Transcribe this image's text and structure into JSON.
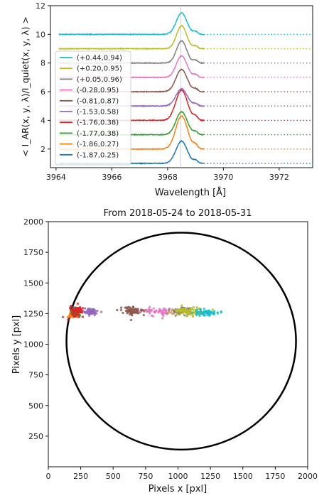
{
  "chart_data": [
    {
      "type": "line",
      "title": "",
      "xlabel": "Wavelength [Å]",
      "ylabel": "< I_AR(x, y, λ)/I_quiet(x, y, λ) >",
      "xlim": [
        3963.8,
        3973.2
      ],
      "ylim": [
        0.7,
        12
      ],
      "xticks": [
        3964,
        3966,
        3968,
        3970,
        3972
      ],
      "yticks": [
        2,
        4,
        6,
        8,
        10,
        12
      ],
      "grid": false,
      "legend_position": "left",
      "vline": 3968.47,
      "series": [
        {
          "name": "(+0.44,0.94)",
          "color": "#17becf",
          "baseline": 10.0,
          "peak": 1.5,
          "width": 0.19
        },
        {
          "name": "(+0.20,0.95)",
          "color": "#bcbd22",
          "baseline": 9.0,
          "peak": 1.6,
          "width": 0.18
        },
        {
          "name": "(+0.05,0.96)",
          "color": "#7f7f7f",
          "baseline": 8.0,
          "peak": 1.55,
          "width": 0.18
        },
        {
          "name": "(-0.28,0.95)",
          "color": "#e377c2",
          "baseline": 7.0,
          "peak": 1.5,
          "width": 0.19
        },
        {
          "name": "(-0.81,0.87)",
          "color": "#8c564b",
          "baseline": 6.0,
          "peak": 1.55,
          "width": 0.2
        },
        {
          "name": "(-1.53,0.58)",
          "color": "#9467bd",
          "baseline": 5.0,
          "peak": 1.2,
          "width": 0.2
        },
        {
          "name": "(-1.76,0.38)",
          "color": "#d62728",
          "baseline": 4.0,
          "peak": 2.1,
          "width": 0.21
        },
        {
          "name": "(-1.77,0.38)",
          "color": "#2ca02c",
          "baseline": 3.0,
          "peak": 1.6,
          "width": 0.2
        },
        {
          "name": "(-1.86,0.27)",
          "color": "#ff7f0e",
          "baseline": 2.0,
          "peak": 2.3,
          "width": 0.21
        },
        {
          "name": "(-1.87,0.25)",
          "color": "#1f77b4",
          "baseline": 1.0,
          "peak": 1.55,
          "width": 0.2
        }
      ]
    },
    {
      "type": "scatter",
      "title": "From 2018-05-24 to 2018-05-31",
      "xlabel": "Pixels x [pxl]",
      "ylabel": "Pixels y [pxl]",
      "xlim": [
        0,
        2000
      ],
      "ylim": [
        0,
        2000
      ],
      "xticks": [
        0,
        250,
        500,
        750,
        1000,
        1250,
        1500,
        1750,
        2000
      ],
      "yticks": [
        250,
        500,
        750,
        1000,
        1250,
        1500,
        1750,
        2000
      ],
      "grid": false,
      "limb_circle": {
        "cx": 1025,
        "cy": 1025,
        "r": 885
      },
      "clusters": [
        {
          "color": "#1f77b4",
          "cx": 200,
          "cy": 1255,
          "spread_x": 15,
          "spread_y": 14
        },
        {
          "color": "#ff7f0e",
          "cx": 185,
          "cy": 1245,
          "spread_x": 18,
          "spread_y": 16
        },
        {
          "color": "#2ca02c",
          "cx": 215,
          "cy": 1265,
          "spread_x": 16,
          "spread_y": 14
        },
        {
          "color": "#d62728",
          "cx": 220,
          "cy": 1270,
          "spread_x": 25,
          "spread_y": 20
        },
        {
          "color": "#9467bd",
          "cx": 330,
          "cy": 1265,
          "spread_x": 25,
          "spread_y": 12
        },
        {
          "color": "#8c564b",
          "cx": 650,
          "cy": 1270,
          "spread_x": 50,
          "spread_y": 18
        },
        {
          "color": "#e377c2",
          "cx": 880,
          "cy": 1265,
          "spread_x": 75,
          "spread_y": 17
        },
        {
          "color": "#7f7f7f",
          "cx": 1040,
          "cy": 1275,
          "spread_x": 45,
          "spread_y": 16
        },
        {
          "color": "#bcbd22",
          "cx": 1090,
          "cy": 1265,
          "spread_x": 65,
          "spread_y": 18
        },
        {
          "color": "#17becf",
          "cx": 1215,
          "cy": 1260,
          "spread_x": 45,
          "spread_y": 12
        }
      ]
    }
  ]
}
